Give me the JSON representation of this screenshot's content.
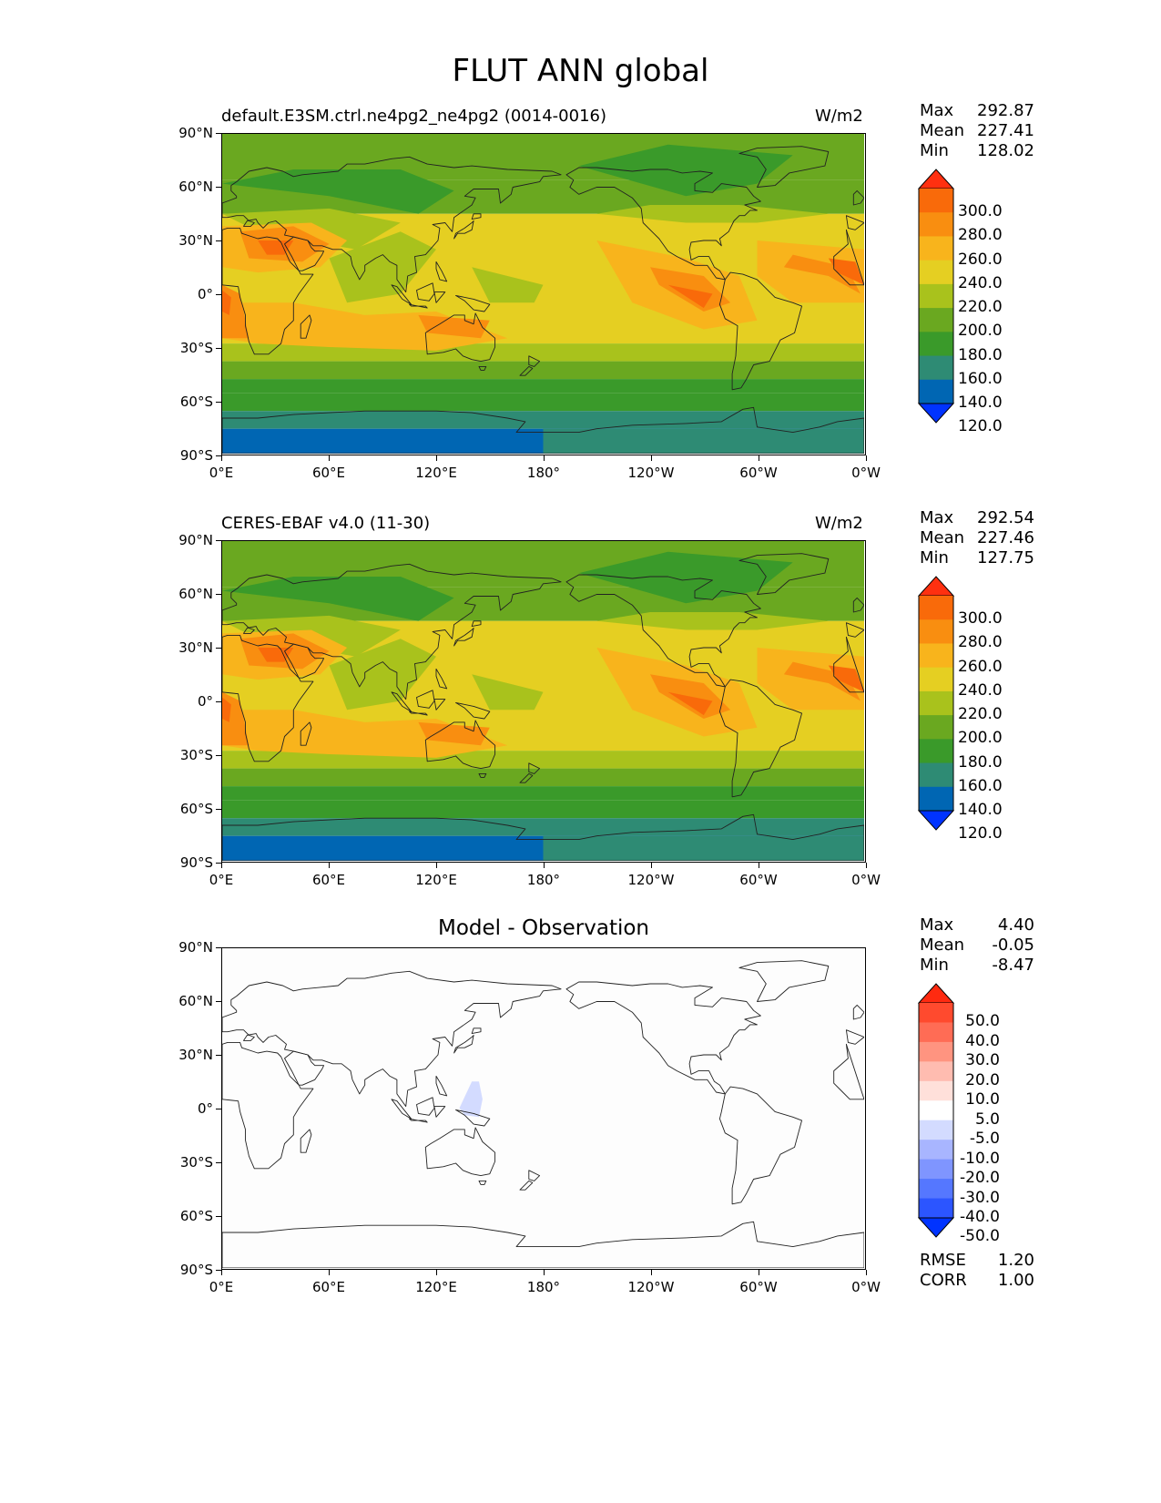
{
  "figure": {
    "title": "FLUT ANN global"
  },
  "axes": {
    "lat_ticks": [
      "90°N",
      "60°N",
      "30°N",
      "0°",
      "30°S",
      "60°S",
      "90°S"
    ],
    "lon_ticks": [
      "0°E",
      "60°E",
      "120°E",
      "180°",
      "120°W",
      "60°W",
      "0°W"
    ]
  },
  "panels": [
    {
      "label": "default.E3SM.ctrl.ne4pg2_ne4pg2 (0014-0016)",
      "units": "W/m2",
      "stats": [
        {
          "k": "Max",
          "v": "292.87"
        },
        {
          "k": "Mean",
          "v": "227.41"
        },
        {
          "k": "Min",
          "v": "128.02"
        }
      ],
      "colorbar_labels": [
        "300.0",
        "280.0",
        "260.0",
        "240.0",
        "220.0",
        "200.0",
        "180.0",
        "160.0",
        "140.0",
        "120.0"
      ]
    },
    {
      "label": "CERES-EBAF v4.0 (11-30)",
      "units": "W/m2",
      "stats": [
        {
          "k": "Max",
          "v": "292.54"
        },
        {
          "k": "Mean",
          "v": "227.46"
        },
        {
          "k": "Min",
          "v": "127.75"
        }
      ],
      "colorbar_labels": [
        "300.0",
        "280.0",
        "260.0",
        "240.0",
        "220.0",
        "200.0",
        "180.0",
        "160.0",
        "140.0",
        "120.0"
      ]
    },
    {
      "title": "Model - Observation",
      "stats": [
        {
          "k": "Max",
          "v": "4.40"
        },
        {
          "k": "Mean",
          "v": "-0.05"
        },
        {
          "k": "Min",
          "v": "-8.47"
        }
      ],
      "colorbar_labels": [
        "50.0",
        "40.0",
        "30.0",
        "20.0",
        "10.0",
        "5.0",
        "-5.0",
        "-10.0",
        "-20.0",
        "-30.0",
        "-40.0",
        "-50.0"
      ],
      "metrics": [
        {
          "k": "RMSE",
          "v": "1.20"
        },
        {
          "k": "CORR",
          "v": "1.00"
        }
      ]
    }
  ],
  "colors": {
    "flut_scale": [
      "#0033ff",
      "#0066b3",
      "#2e8b74",
      "#3a9a2a",
      "#6aa820",
      "#a9c21c",
      "#e5cf22",
      "#f8b41c",
      "#f98e10",
      "#f96a0a",
      "#ff3010"
    ],
    "diff_scale": [
      "#0033ff",
      "#2c55ff",
      "#5577ff",
      "#7f95ff",
      "#a8b5ff",
      "#d3dbff",
      "#ffffff",
      "#ffe0da",
      "#ffbcb0",
      "#ff9480",
      "#ff6c55",
      "#ff4a2e",
      "#ff2a10"
    ]
  }
}
